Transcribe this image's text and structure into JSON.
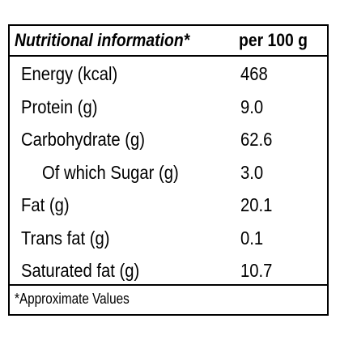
{
  "table": {
    "header": [
      "Nutritional information*",
      "per 100 g"
    ],
    "rows": [
      [
        "Energy (kcal)",
        "468"
      ],
      [
        "Protein (g)",
        "9.0"
      ],
      [
        "Carbohydrate (g)",
        "62.6"
      ],
      [
        "Of which Sugar (g)",
        "3.0"
      ],
      [
        "Fat (g)",
        "20.1"
      ],
      [
        "Trans fat (g)",
        "0.1"
      ],
      [
        "Saturated fat (g)",
        "10.7"
      ]
    ],
    "footnote": "*Approximate Values"
  }
}
